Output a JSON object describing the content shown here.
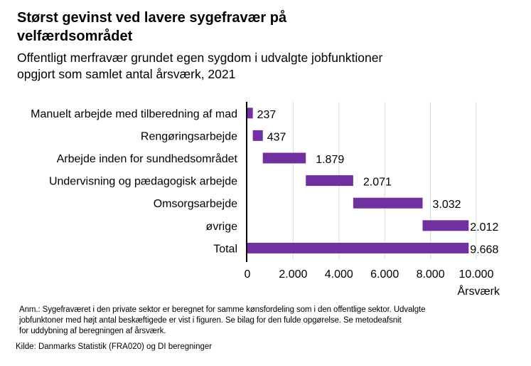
{
  "header": {
    "title": "Størst gevinst ved lavere sygefravær på velfærdsområdet",
    "subtitle_line1": "Offentligt merfravær grundet egen sygdom i udvalgte jobfunktioner",
    "subtitle_line2": "opgjort som samlet antal årsværk, 2021"
  },
  "chart_data": {
    "type": "bar",
    "orientation": "horizontal",
    "variant": "waterfall",
    "title": "Størst gevinst ved lavere sygefravær på velfærdsområdet",
    "subtitle": "Offentligt merfravær grundet egen sygdom i udvalgte jobfunktioner opgjort som samlet antal årsværk, 2021",
    "categories": [
      "Manuelt arbejde med tilberedning af mad",
      "Rengøringsarbejde",
      "Arbejde inden for sundhedsområdet",
      "Undervisning og pædagogisk arbejde",
      "Omsorgsarbejde",
      "øvrige",
      "Total"
    ],
    "values": [
      237,
      437,
      1879,
      2071,
      3032,
      2012,
      9668
    ],
    "value_labels": [
      "237",
      "437",
      "1.879",
      "2.071",
      "3.032",
      "2.012",
      "9.668"
    ],
    "is_total": [
      false,
      false,
      false,
      false,
      false,
      false,
      true
    ],
    "xlabel": "Årsværk",
    "ylabel": "",
    "xlim": [
      0,
      10000
    ],
    "xticks": [
      0,
      2000,
      4000,
      6000,
      8000,
      10000
    ],
    "xtick_labels": [
      "0",
      "2.000",
      "4.000",
      "6.000",
      "8.000",
      "10.000"
    ],
    "grid": "vertical",
    "legend": "none",
    "bar_color": "#7030A0"
  },
  "footer": {
    "note_line1": "Anm.: Sygefraværet i den private sektor er beregnet for samme kønsfordeling som i den offentlige sektor. Udvalgte",
    "note_line2": "jobfunktoner med højt antal beskæftigede er vist i figuren. Se bilag for den fulde opgørelse. Se metodeafsnit",
    "note_line3": "for uddybning af beregningen af årsværk.",
    "source": "Kilde: Danmarks Statistik (FRA020) og DI beregninger"
  }
}
